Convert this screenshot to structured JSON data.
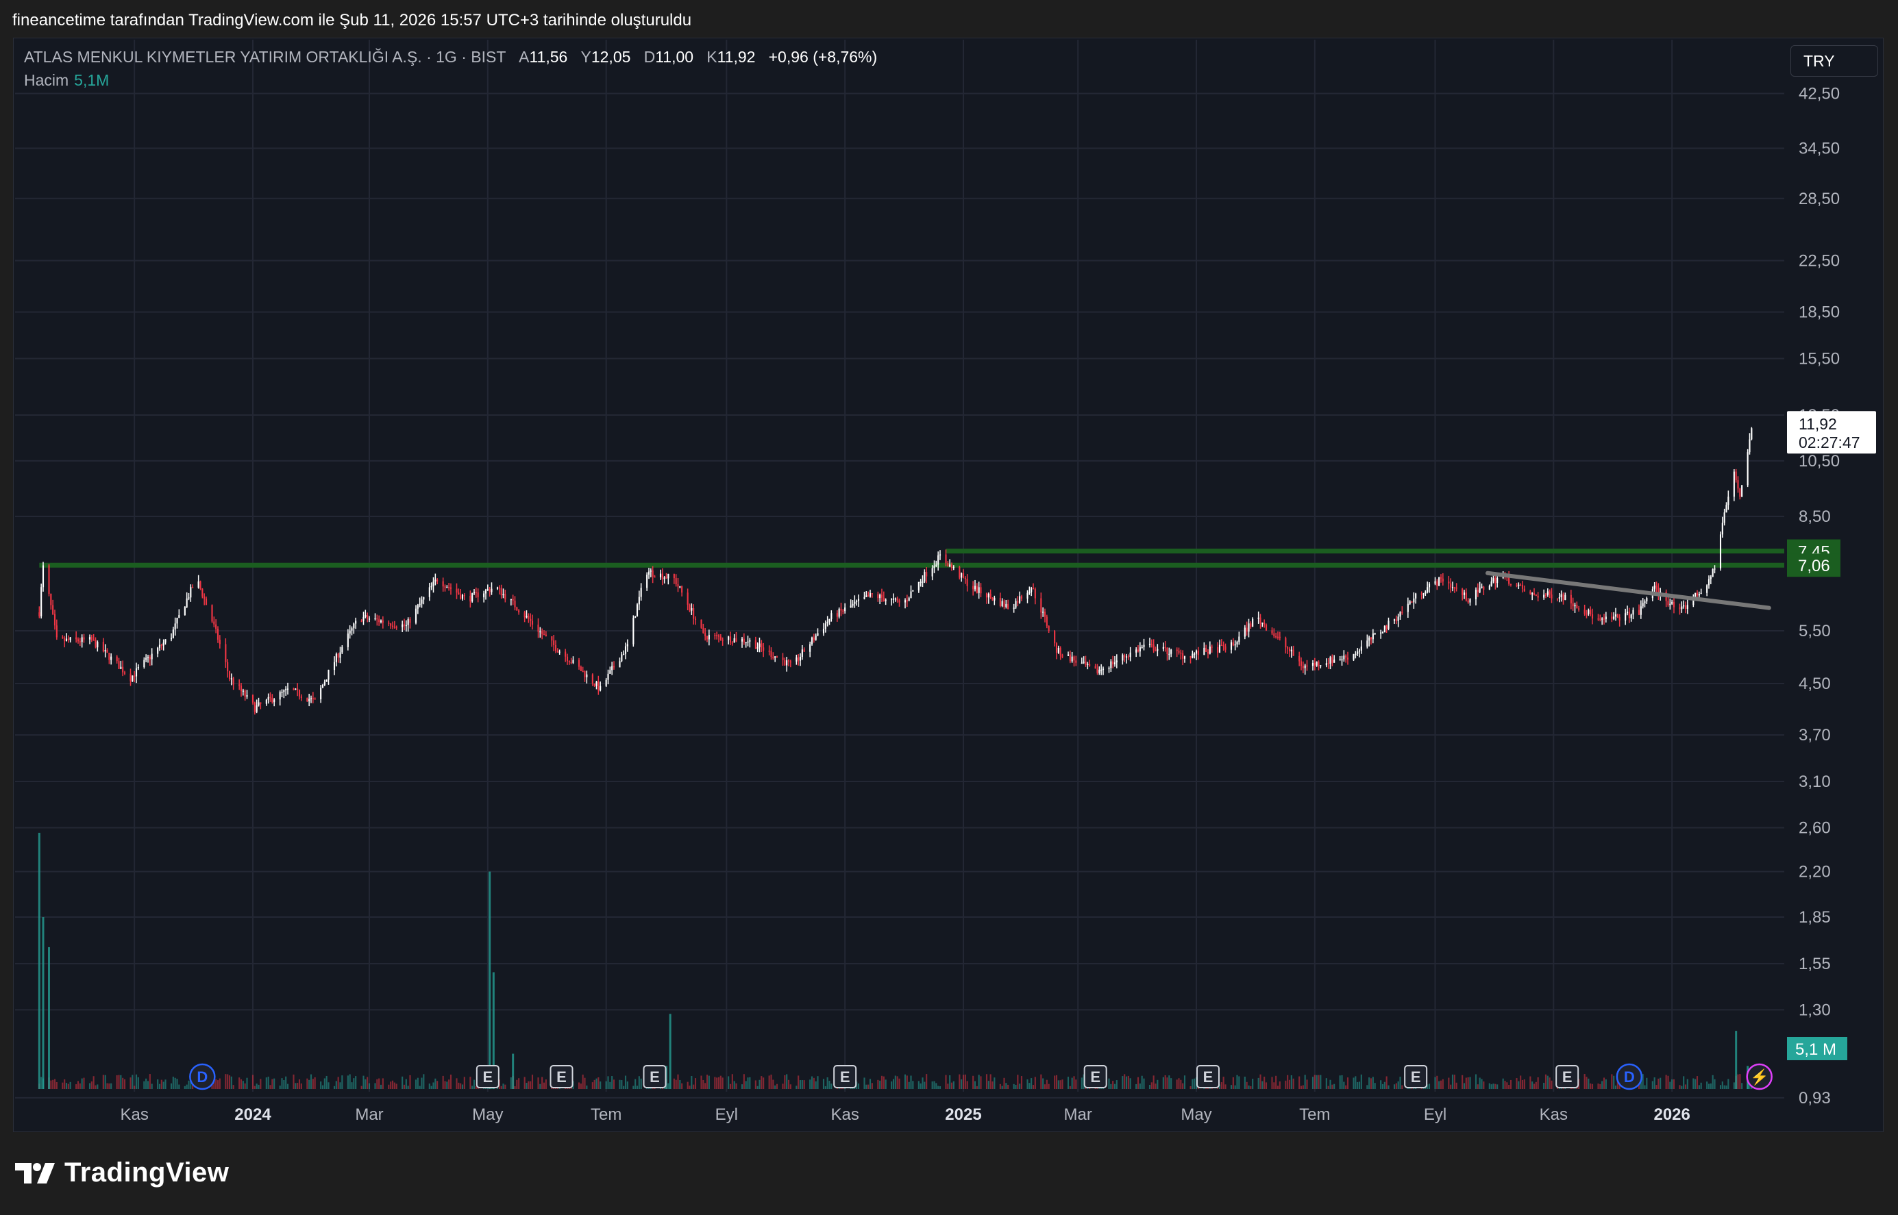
{
  "header": {
    "attribution": "fineancetime tarafından TradingView.com ile Şub 11, 2026 15:57 UTC+3 tarihinde oluşturuldu"
  },
  "legend": {
    "symbol": "ATLAS MENKUL KIYMETLER YATIRIM ORTAKLIĞI A.Ş. · 1G · BIST",
    "open_label": "A",
    "open": "11,56",
    "high_label": "Y",
    "high": "12,05",
    "low_label": "D",
    "low": "11,00",
    "close_label": "K",
    "close": "11,92",
    "change": "+0,96 (+8,76%)",
    "volume_label": "Hacim",
    "volume": "5,1M"
  },
  "currency_button": "TRY",
  "footer": {
    "brand": "TradingView",
    "logo_icon": "tradingview-logo-icon"
  },
  "colors": {
    "up": "#ffffff",
    "down": "#f23645",
    "level": "#1b5e20",
    "trend": "#787878",
    "volume": "#26a69a",
    "background": "#141821"
  },
  "chart_data": {
    "type": "candlestick",
    "scale": "log",
    "grid": true,
    "y_ticks": [
      "42,50",
      "34,50",
      "28,50",
      "22,50",
      "18,50",
      "15,50",
      "12,50",
      "10,50",
      "8,50",
      "5,50",
      "4,50",
      "3,70",
      "3,10",
      "2,60",
      "2,20",
      "1,85",
      "1,55",
      "1,30",
      "0,93"
    ],
    "x_ticks": [
      {
        "label": "Kas",
        "date": "2023-11-01",
        "bold": false
      },
      {
        "label": "2024",
        "date": "2024-01-01",
        "bold": true
      },
      {
        "label": "Mar",
        "date": "2024-03-01",
        "bold": false
      },
      {
        "label": "May",
        "date": "2024-05-01",
        "bold": false
      },
      {
        "label": "Tem",
        "date": "2024-07-01",
        "bold": false
      },
      {
        "label": "Eyl",
        "date": "2024-09-01",
        "bold": false
      },
      {
        "label": "Kas",
        "date": "2024-11-01",
        "bold": false
      },
      {
        "label": "2025",
        "date": "2025-01-01",
        "bold": true
      },
      {
        "label": "Mar",
        "date": "2025-03-01",
        "bold": false
      },
      {
        "label": "May",
        "date": "2025-05-01",
        "bold": false
      },
      {
        "label": "Tem",
        "date": "2025-07-01",
        "bold": false
      },
      {
        "label": "Eyl",
        "date": "2025-09-01",
        "bold": false
      },
      {
        "label": "Kas",
        "date": "2025-11-01",
        "bold": false
      },
      {
        "label": "2026",
        "date": "2026-01-01",
        "bold": true
      }
    ],
    "price_path": [
      {
        "date": "2023-09-13",
        "p": 5.9
      },
      {
        "date": "2023-09-15",
        "p": 7.0
      },
      {
        "date": "2023-09-22",
        "p": 5.3
      },
      {
        "date": "2023-10-10",
        "p": 5.3
      },
      {
        "date": "2023-10-30",
        "p": 4.6
      },
      {
        "date": "2023-11-20",
        "p": 5.4
      },
      {
        "date": "2023-12-03",
        "p": 6.7
      },
      {
        "date": "2023-12-20",
        "p": 4.6
      },
      {
        "date": "2024-01-02",
        "p": 4.1
      },
      {
        "date": "2024-01-20",
        "p": 4.4
      },
      {
        "date": "2024-02-02",
        "p": 4.2
      },
      {
        "date": "2024-02-25",
        "p": 5.8
      },
      {
        "date": "2024-03-20",
        "p": 5.6
      },
      {
        "date": "2024-04-05",
        "p": 6.7
      },
      {
        "date": "2024-04-20",
        "p": 6.2
      },
      {
        "date": "2024-05-05",
        "p": 6.5
      },
      {
        "date": "2024-06-01",
        "p": 5.3
      },
      {
        "date": "2024-06-28",
        "p": 4.4
      },
      {
        "date": "2024-07-12",
        "p": 5.2
      },
      {
        "date": "2024-07-22",
        "p": 6.9
      },
      {
        "date": "2024-08-05",
        "p": 6.7
      },
      {
        "date": "2024-08-20",
        "p": 5.4
      },
      {
        "date": "2024-09-12",
        "p": 5.3
      },
      {
        "date": "2024-10-05",
        "p": 4.8
      },
      {
        "date": "2024-10-25",
        "p": 5.8
      },
      {
        "date": "2024-11-15",
        "p": 6.3
      },
      {
        "date": "2024-12-01",
        "p": 6.1
      },
      {
        "date": "2024-12-20",
        "p": 7.3
      },
      {
        "date": "2025-01-05",
        "p": 6.5
      },
      {
        "date": "2025-01-25",
        "p": 6.0
      },
      {
        "date": "2025-02-05",
        "p": 6.5
      },
      {
        "date": "2025-02-18",
        "p": 5.1
      },
      {
        "date": "2025-03-10",
        "p": 4.7
      },
      {
        "date": "2025-04-05",
        "p": 5.2
      },
      {
        "date": "2025-04-25",
        "p": 5.0
      },
      {
        "date": "2025-05-20",
        "p": 5.2
      },
      {
        "date": "2025-06-01",
        "p": 5.8
      },
      {
        "date": "2025-06-25",
        "p": 4.8
      },
      {
        "date": "2025-07-20",
        "p": 5.0
      },
      {
        "date": "2025-08-10",
        "p": 5.7
      },
      {
        "date": "2025-08-25",
        "p": 6.4
      },
      {
        "date": "2025-09-05",
        "p": 6.7
      },
      {
        "date": "2025-09-18",
        "p": 6.2
      },
      {
        "date": "2025-10-05",
        "p": 6.8
      },
      {
        "date": "2025-10-20",
        "p": 6.3
      },
      {
        "date": "2025-11-05",
        "p": 6.3
      },
      {
        "date": "2025-11-25",
        "p": 5.7
      },
      {
        "date": "2025-12-15",
        "p": 5.9
      },
      {
        "date": "2025-12-22",
        "p": 6.5
      },
      {
        "date": "2026-01-05",
        "p": 5.9
      },
      {
        "date": "2026-01-20",
        "p": 6.6
      },
      {
        "date": "2026-01-24",
        "p": 7.2
      },
      {
        "date": "2026-01-27",
        "p": 8.3
      },
      {
        "date": "2026-02-02",
        "p": 10.0
      },
      {
        "date": "2026-02-05",
        "p": 9.2
      },
      {
        "date": "2026-02-09",
        "p": 10.9
      },
      {
        "date": "2026-02-11",
        "p": 11.92
      }
    ],
    "levels": [
      {
        "label": "7,45",
        "value": 7.45,
        "from": "2024-12-23"
      },
      {
        "label": "7,06",
        "value": 7.06,
        "from": "2023-09-13"
      }
    ],
    "trendline": {
      "from_date": "2025-09-28",
      "from": 6.85,
      "to_date": "2026-02-20",
      "to": 6.0
    },
    "last_price": {
      "label": "11,92",
      "countdown": "02:27:47"
    },
    "last_volume_label": "5,1 M",
    "volume_spikes": [
      {
        "date": "2023-09-13",
        "v": 2.55
      },
      {
        "date": "2023-09-15",
        "v": 1.85
      },
      {
        "date": "2023-09-18",
        "v": 1.65
      },
      {
        "date": "2024-05-02",
        "v": 2.2
      },
      {
        "date": "2024-05-04",
        "v": 1.5
      },
      {
        "date": "2024-05-14",
        "v": 1.1
      },
      {
        "date": "2024-08-03",
        "v": 1.28
      },
      {
        "date": "2024-08-01",
        "v": 1.05
      },
      {
        "date": "2026-02-03",
        "v": 1.2
      },
      {
        "date": "2026-02-09",
        "v": 1.05
      }
    ],
    "event_markers": [
      {
        "date": "2023-12-06",
        "label": "D",
        "kind": "dividend"
      },
      {
        "date": "2024-05-01",
        "label": "E",
        "kind": "earnings"
      },
      {
        "date": "2024-06-08",
        "label": "E",
        "kind": "earnings"
      },
      {
        "date": "2024-07-26",
        "label": "E",
        "kind": "earnings"
      },
      {
        "date": "2024-11-01",
        "label": "E",
        "kind": "earnings"
      },
      {
        "date": "2025-03-10",
        "label": "E",
        "kind": "earnings"
      },
      {
        "date": "2025-05-07",
        "label": "E",
        "kind": "earnings"
      },
      {
        "date": "2025-08-22",
        "label": "E",
        "kind": "earnings"
      },
      {
        "date": "2025-11-08",
        "label": "E",
        "kind": "earnings"
      },
      {
        "date": "2025-12-10",
        "label": "D",
        "kind": "dividend"
      },
      {
        "date": "2026-02-15",
        "label": "⚡",
        "kind": "lightning"
      }
    ]
  }
}
